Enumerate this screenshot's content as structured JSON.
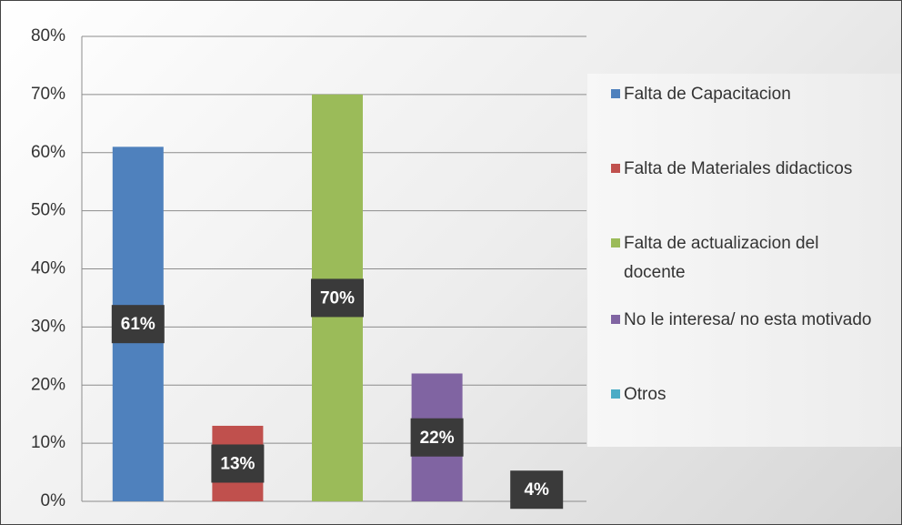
{
  "chart_data": {
    "type": "bar",
    "categories": [
      "Falta de Capacitacion",
      "Falta de Materiales didacticos",
      "Falta de actualizacion del docente",
      "No le interesa/ no esta motivado",
      "Otros"
    ],
    "values": [
      61,
      13,
      70,
      22,
      4
    ],
    "value_labels": [
      "61%",
      "13%",
      "70%",
      "22%",
      "4%"
    ],
    "colors": [
      "#4f81bd",
      "#c0504d",
      "#9bbb59",
      "#8064a2",
      "#4bacc6"
    ],
    "ylim": [
      0,
      80
    ],
    "yticks": [
      {
        "value": 0,
        "label": "0%"
      },
      {
        "value": 10,
        "label": "10%"
      },
      {
        "value": 20,
        "label": "20%"
      },
      {
        "value": 30,
        "label": "30%"
      },
      {
        "value": 40,
        "label": "40%"
      },
      {
        "value": 50,
        "label": "50%"
      },
      {
        "value": 60,
        "label": "60%"
      },
      {
        "value": 70,
        "label": "70%"
      },
      {
        "value": 80,
        "label": "80%"
      }
    ],
    "grid": true,
    "legend": "right"
  }
}
